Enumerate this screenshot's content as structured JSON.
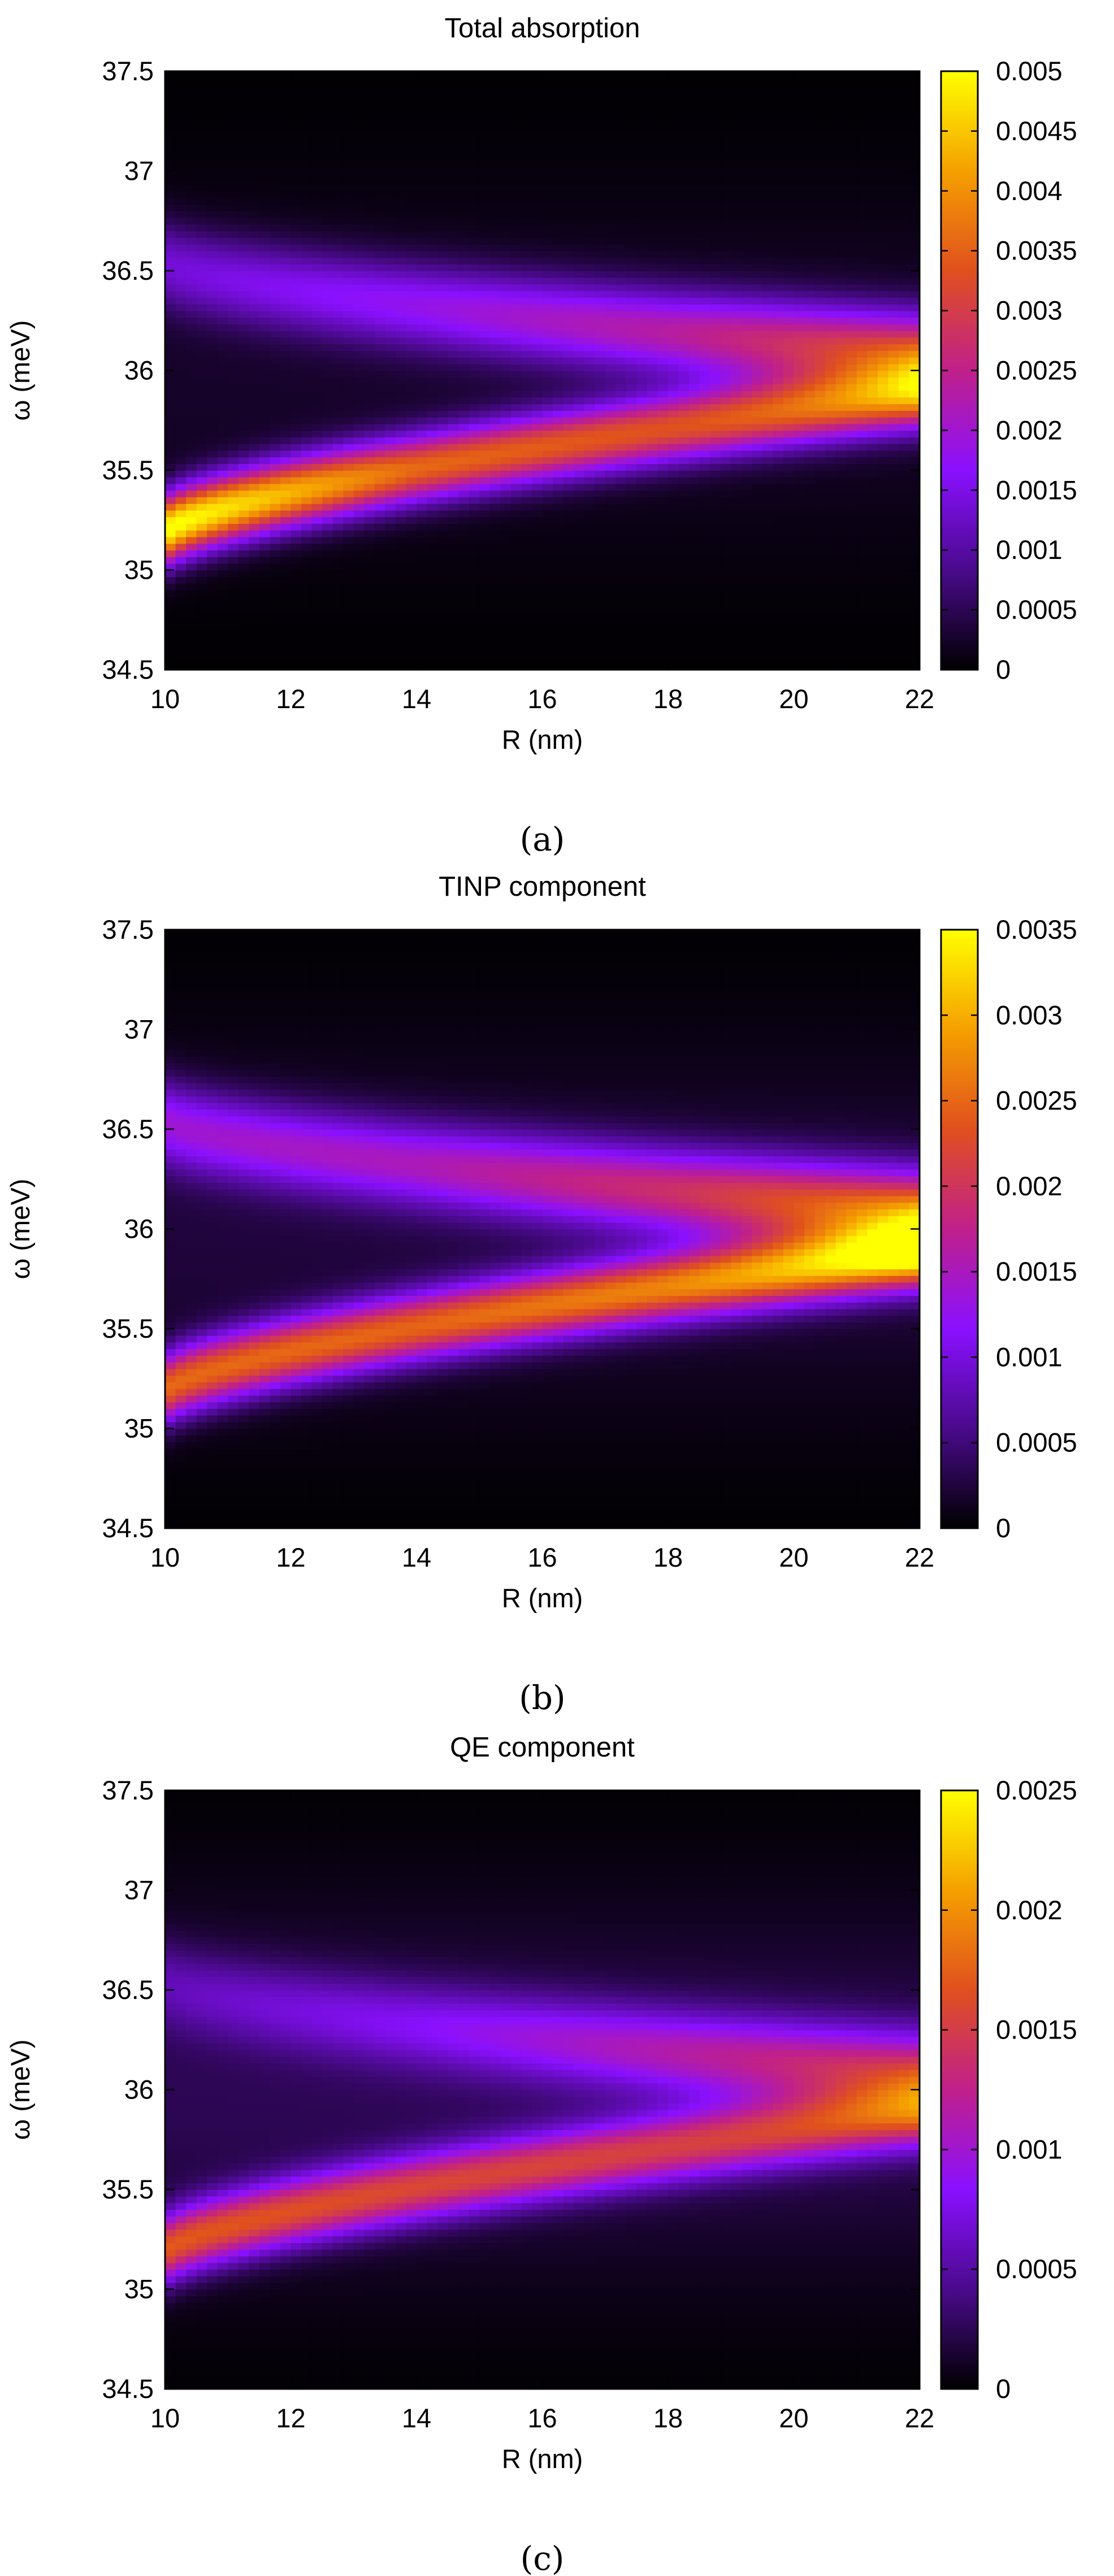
{
  "chart_data": [
    {
      "type": "heatmap",
      "panel": "(a)",
      "title": "Total absorption",
      "xlabel": "R (nm)",
      "ylabel": "ω (meV)",
      "xlim": [
        10,
        22
      ],
      "ylim": [
        34.5,
        37.5
      ],
      "xticks": [
        "10",
        "12",
        "14",
        "16",
        "18",
        "20",
        "22"
      ],
      "yticks": [
        "34.5",
        "35",
        "35.5",
        "36",
        "36.5",
        "37",
        "37.5"
      ],
      "colorbar": {
        "range": [
          0,
          0.005
        ],
        "ticks": [
          "0",
          "0.0005",
          "0.001",
          "0.0015",
          "0.002",
          "0.0025",
          "0.003",
          "0.0035",
          "0.004",
          "0.0045",
          "0.005"
        ]
      },
      "colormap": [
        "#000000",
        "#4a0a8c",
        "#8a10ff",
        "#c0208a",
        "#e0501e",
        "#f5a000",
        "#ffff00"
      ],
      "bands": {
        "center_meV": 36.0,
        "splitting_at_R10_meV": 1.35,
        "splitting_at_R22_meV": 0.2,
        "lower_peak": [
          [
            10,
            0.005
          ],
          [
            14,
            0.0034
          ],
          [
            18,
            0.0031
          ],
          [
            22,
            0.0034
          ]
        ],
        "upper_peak": [
          [
            10,
            0.0012
          ],
          [
            14,
            0.0016
          ],
          [
            18,
            0.0021
          ],
          [
            22,
            0.003
          ]
        ]
      }
    },
    {
      "type": "heatmap",
      "panel": "(b)",
      "title": "TINP component",
      "xlabel": "R (nm)",
      "ylabel": "ω (meV)",
      "xlim": [
        10,
        22
      ],
      "ylim": [
        34.5,
        37.5
      ],
      "xticks": [
        "10",
        "12",
        "14",
        "16",
        "18",
        "20",
        "22"
      ],
      "yticks": [
        "34.5",
        "35",
        "35.5",
        "36",
        "36.5",
        "37",
        "37.5"
      ],
      "colorbar": {
        "range": [
          0,
          0.0035
        ],
        "ticks": [
          "0",
          "0.0005",
          "0.001",
          "0.0015",
          "0.002",
          "0.0025",
          "0.003",
          "0.0035"
        ]
      },
      "colormap": [
        "#000000",
        "#4a0a8c",
        "#8a10ff",
        "#c0208a",
        "#e0501e",
        "#f5a000",
        "#ffff00"
      ],
      "bands": {
        "center_meV": 36.0,
        "splitting_at_R10_meV": 1.35,
        "splitting_at_R22_meV": 0.2,
        "lower_peak": [
          [
            10,
            0.0024
          ],
          [
            14,
            0.0023
          ],
          [
            18,
            0.0025
          ],
          [
            22,
            0.0031
          ]
        ],
        "upper_peak": [
          [
            10,
            0.0012
          ],
          [
            14,
            0.0013
          ],
          [
            18,
            0.0017
          ],
          [
            22,
            0.0024
          ]
        ]
      }
    },
    {
      "type": "heatmap",
      "panel": "(c)",
      "title": "QE component",
      "xlabel": "R (nm)",
      "ylabel": "ω (meV)",
      "xlim": [
        10,
        22
      ],
      "ylim": [
        34.5,
        37.5
      ],
      "xticks": [
        "10",
        "12",
        "14",
        "16",
        "18",
        "20",
        "22"
      ],
      "yticks": [
        "34.5",
        "35",
        "35.5",
        "36",
        "36.5",
        "37",
        "37.5"
      ],
      "colorbar": {
        "range": [
          0,
          0.0025
        ],
        "ticks": [
          "0",
          "0.0005",
          "0.001",
          "0.0015",
          "0.002",
          "0.0025"
        ]
      },
      "colormap": [
        "#000000",
        "#4a0a8c",
        "#8a10ff",
        "#c0208a",
        "#e0501e",
        "#f5a000",
        "#ffff00"
      ],
      "bands": {
        "center_meV": 36.0,
        "splitting_at_R10_meV": 1.35,
        "splitting_at_R22_meV": 0.2,
        "lower_peak": [
          [
            10,
            0.0016
          ],
          [
            14,
            0.0014
          ],
          [
            18,
            0.0013
          ],
          [
            22,
            0.0013
          ]
        ],
        "upper_peak": [
          [
            10,
            0.0004
          ],
          [
            14,
            0.0006
          ],
          [
            18,
            0.0009
          ],
          [
            22,
            0.0012
          ]
        ]
      }
    }
  ]
}
